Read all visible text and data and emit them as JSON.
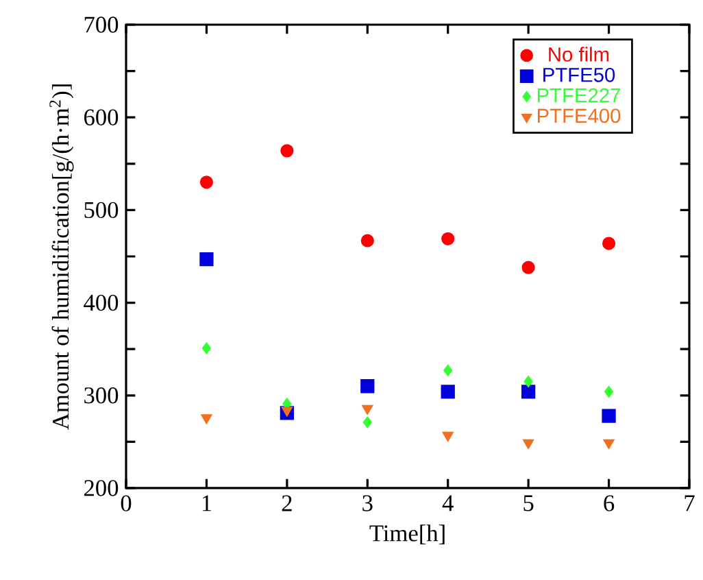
{
  "chart_data": {
    "type": "scatter",
    "xlabel": "Time[h]",
    "ylabel": "Amount of humidification[g/(h·m$^{2}$)]",
    "x": [
      1,
      2,
      3,
      4,
      5,
      6
    ],
    "series": [
      {
        "name": "No film",
        "color": "#ff0000",
        "marker": "circle",
        "values": [
          530,
          564,
          467,
          469,
          438,
          464
        ]
      },
      {
        "name": "PTFE50",
        "color": "#0000dd",
        "marker": "square",
        "values": [
          447,
          281,
          310,
          304,
          304,
          278
        ]
      },
      {
        "name": "PTFE227",
        "color": "#33ff33",
        "marker": "diamond",
        "values": [
          351,
          291,
          271,
          327,
          315,
          304
        ]
      },
      {
        "name": "PTFE400",
        "color": "#f07020",
        "marker": "triangle",
        "values": [
          276,
          284,
          286,
          257,
          249,
          249
        ]
      }
    ],
    "xlim": [
      0,
      7
    ],
    "xticks": [
      0,
      1,
      2,
      3,
      4,
      5,
      6,
      7
    ],
    "ylim": [
      200,
      700
    ],
    "yticks": [
      200,
      300,
      400,
      500,
      600,
      700
    ],
    "grid": false,
    "legend": "top right"
  }
}
